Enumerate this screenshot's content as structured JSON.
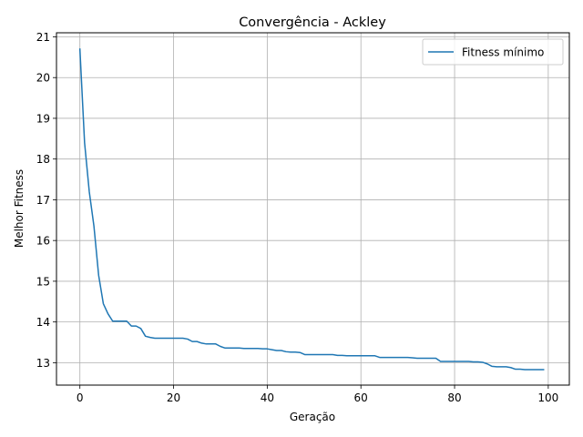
{
  "chart_data": {
    "type": "line",
    "title": "Convergência - Ackley",
    "xlabel": "Geração",
    "ylabel": "Melhor Fitness",
    "xlim": [
      -5,
      104.5
    ],
    "ylim": [
      12.45,
      21.1
    ],
    "xticks": [
      0,
      20,
      40,
      60,
      80,
      100
    ],
    "yticks": [
      13,
      14,
      15,
      16,
      17,
      18,
      19,
      20,
      21
    ],
    "grid": true,
    "legend": "top-right",
    "line_color": "#1f77b4",
    "series": [
      {
        "name": "Fitness mínimo",
        "x": [
          0,
          1,
          2,
          3,
          4,
          5,
          6,
          7,
          8,
          9,
          10,
          11,
          12,
          13,
          14,
          15,
          16,
          17,
          18,
          19,
          20,
          21,
          22,
          23,
          24,
          25,
          26,
          27,
          28,
          29,
          30,
          31,
          32,
          33,
          34,
          35,
          36,
          37,
          38,
          39,
          40,
          41,
          42,
          43,
          44,
          45,
          46,
          47,
          48,
          49,
          50,
          51,
          52,
          53,
          54,
          55,
          56,
          57,
          58,
          59,
          60,
          61,
          62,
          63,
          64,
          65,
          66,
          67,
          68,
          69,
          70,
          71,
          72,
          73,
          74,
          75,
          76,
          77,
          78,
          79,
          80,
          81,
          82,
          83,
          84,
          85,
          86,
          87,
          88,
          89,
          90,
          91,
          92,
          93,
          94,
          95,
          96,
          97,
          98,
          99
        ],
        "values": [
          20.7,
          18.4,
          17.2,
          16.35,
          15.15,
          14.45,
          14.2,
          14.02,
          14.02,
          14.02,
          14.02,
          13.9,
          13.9,
          13.84,
          13.65,
          13.62,
          13.6,
          13.6,
          13.6,
          13.6,
          13.6,
          13.6,
          13.6,
          13.58,
          13.52,
          13.52,
          13.48,
          13.46,
          13.46,
          13.46,
          13.4,
          13.36,
          13.36,
          13.36,
          13.36,
          13.35,
          13.35,
          13.35,
          13.35,
          13.34,
          13.34,
          13.32,
          13.3,
          13.3,
          13.27,
          13.26,
          13.26,
          13.25,
          13.2,
          13.2,
          13.2,
          13.2,
          13.2,
          13.2,
          13.2,
          13.18,
          13.18,
          13.17,
          13.17,
          13.17,
          13.17,
          13.17,
          13.17,
          13.17,
          13.13,
          13.13,
          13.13,
          13.13,
          13.13,
          13.13,
          13.13,
          13.12,
          13.11,
          13.11,
          13.11,
          13.11,
          13.11,
          13.03,
          13.03,
          13.03,
          13.03,
          13.03,
          13.03,
          13.03,
          13.02,
          13.02,
          13.01,
          12.97,
          12.91,
          12.9,
          12.9,
          12.9,
          12.88,
          12.84,
          12.84,
          12.83,
          12.83,
          12.83,
          12.83,
          12.83
        ]
      }
    ]
  }
}
